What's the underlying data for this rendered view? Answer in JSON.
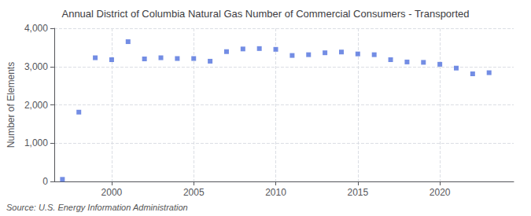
{
  "chart_data": {
    "type": "scatter",
    "title": "Annual District of Columbia Natural Gas Number of Commercial Consumers - Transported",
    "ylabel": "Number of Elements",
    "source": "Source: U.S. Energy Information Administration",
    "x": [
      1997,
      1998,
      1999,
      2000,
      2001,
      2002,
      2003,
      2004,
      2005,
      2006,
      2007,
      2008,
      2009,
      2010,
      2011,
      2012,
      2013,
      2014,
      2015,
      2016,
      2017,
      2018,
      2019,
      2020,
      2021,
      2022,
      2023
    ],
    "values": [
      55,
      1810,
      3230,
      3180,
      3650,
      3200,
      3230,
      3210,
      3210,
      3140,
      3390,
      3460,
      3470,
      3450,
      3290,
      3310,
      3360,
      3380,
      3330,
      3310,
      3180,
      3120,
      3110,
      3060,
      2960,
      2810,
      2840
    ],
    "marker": "square",
    "xlim": [
      1996.5,
      2024.5
    ],
    "xticks": [
      2000,
      2005,
      2010,
      2015,
      2020
    ],
    "ylim": [
      0,
      4000
    ],
    "yticks": [
      0,
      {
        "value": 1000,
        "label": "1,000"
      },
      {
        "value": 2000,
        "label": "2,000"
      },
      {
        "value": 3000,
        "label": "3,000"
      },
      {
        "value": 4000,
        "label": "4,000"
      }
    ],
    "grid": true
  }
}
